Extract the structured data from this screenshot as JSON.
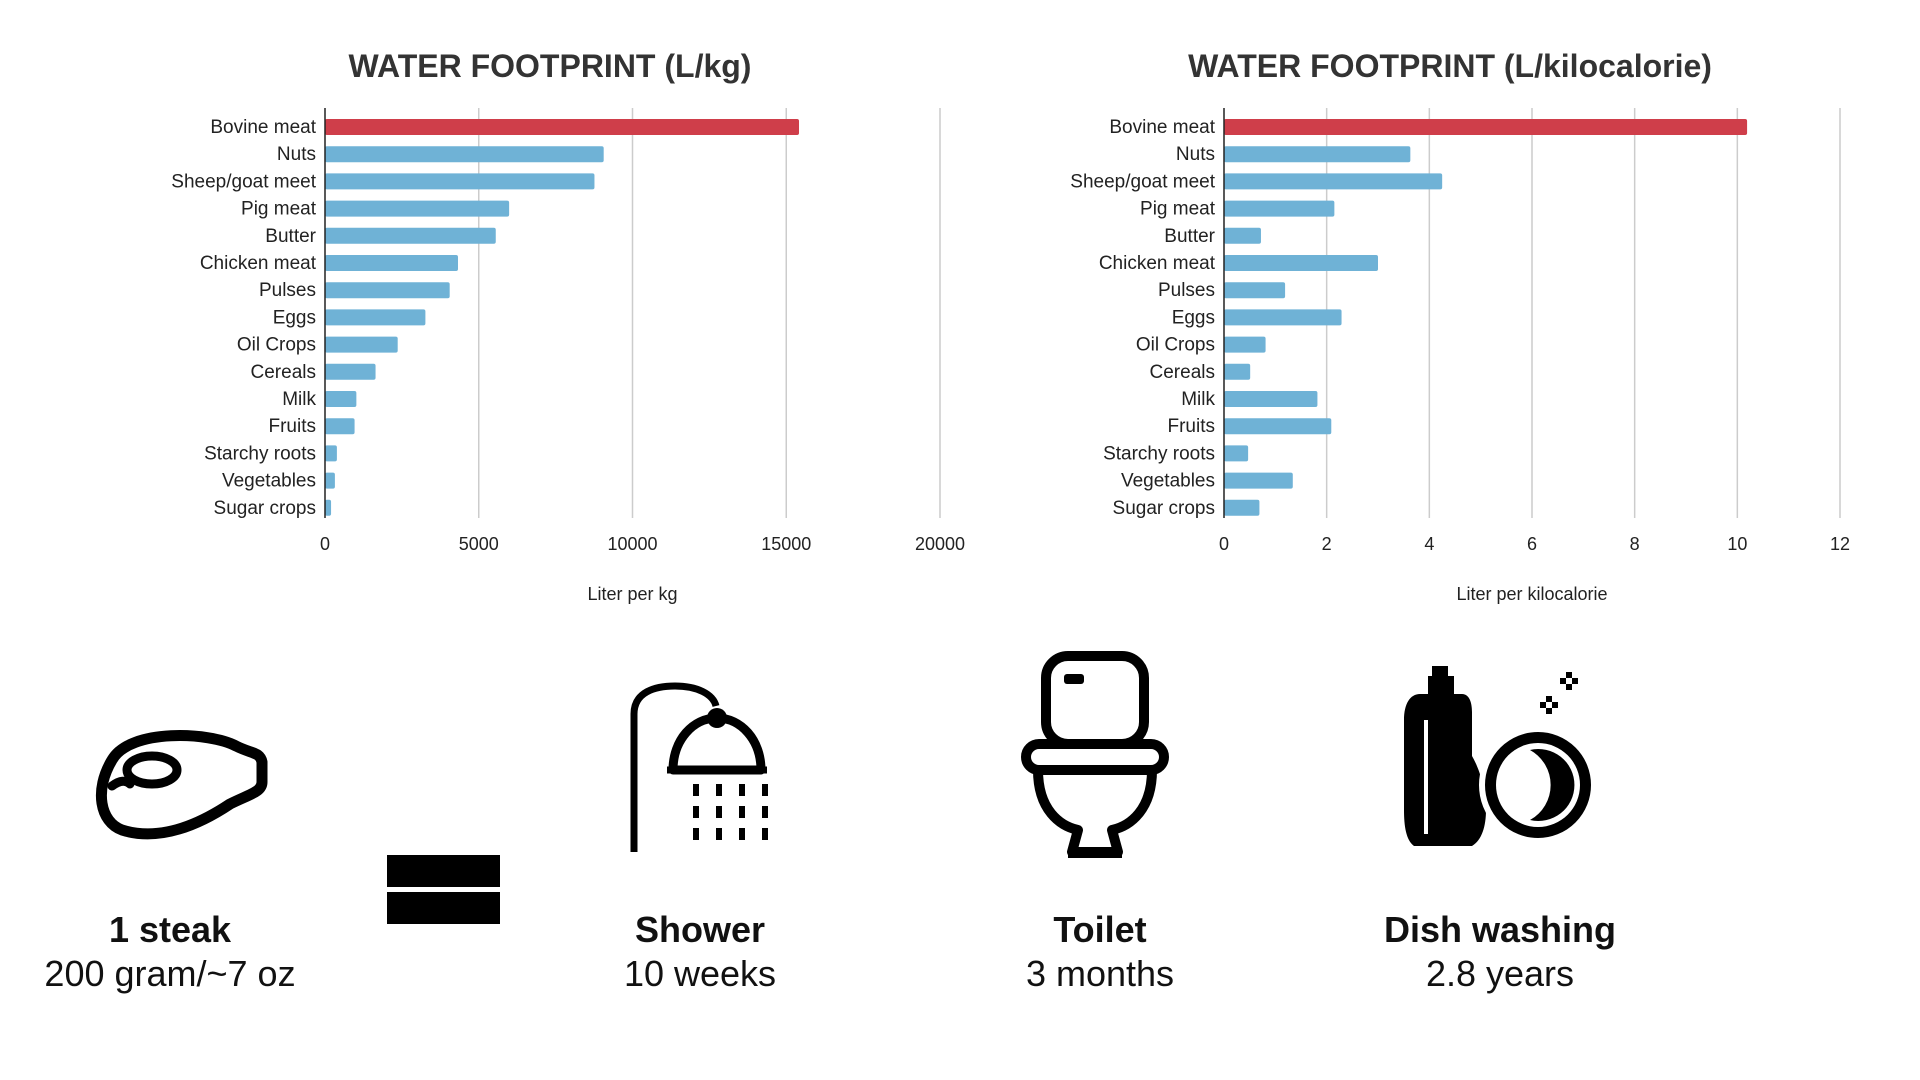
{
  "chart_data": [
    {
      "type": "bar",
      "orientation": "horizontal",
      "title": "WATER FOOTPRINT (L/kg)",
      "xlabel": "Liter per kg",
      "ylabel": "",
      "xlim": [
        0,
        20000
      ],
      "xticks": [
        0,
        5000,
        10000,
        15000,
        20000
      ],
      "tick_labels": [
        "0",
        "5000",
        "10000",
        "15000",
        "20000"
      ],
      "grid": true,
      "categories": [
        "Bovine meat",
        "Nuts",
        "Sheep/goat meet",
        "Pig meat",
        "Butter",
        "Chicken meat",
        "Pulses",
        "Eggs",
        "Oil Crops",
        "Cereals",
        "Milk",
        "Fruits",
        "Starchy roots",
        "Vegetables",
        "Sugar crops"
      ],
      "values": [
        15415,
        9063,
        8763,
        5988,
        5553,
        4325,
        4055,
        3265,
        2364,
        1644,
        1020,
        962,
        387,
        322,
        197
      ],
      "highlight_color": "#cf3e4a",
      "bar_color": "#6fb2d6"
    },
    {
      "type": "bar",
      "orientation": "horizontal",
      "title": "WATER FOOTPRINT (L/kilocalorie)",
      "xlabel": "Liter per kilocalorie",
      "ylabel": "",
      "xlim": [
        0,
        12
      ],
      "xticks": [
        0,
        2,
        4,
        6,
        8,
        10,
        12
      ],
      "tick_labels": [
        "0",
        "2",
        "4",
        "6",
        "8",
        "10",
        "12"
      ],
      "grid": true,
      "categories": [
        "Bovine meat",
        "Nuts",
        "Sheep/goat meet",
        "Pig meat",
        "Butter",
        "Chicken meat",
        "Pulses",
        "Eggs",
        "Oil Crops",
        "Cereals",
        "Milk",
        "Fruits",
        "Starchy roots",
        "Vegetables",
        "Sugar crops"
      ],
      "values": [
        10.19,
        3.63,
        4.25,
        2.15,
        0.72,
        3.0,
        1.19,
        2.29,
        0.81,
        0.51,
        1.82,
        2.09,
        0.47,
        1.34,
        0.69
      ],
      "highlight_color": "#cf3e4a",
      "bar_color": "#6fb2d6"
    }
  ],
  "comparison": {
    "steak": {
      "title": "1 steak",
      "subtitle": "200 gram/~7 oz",
      "icon": "steak-icon"
    },
    "equals": {
      "icon": "equals-icon"
    },
    "items": [
      {
        "title": "Shower",
        "subtitle": "10 weeks",
        "icon": "shower-icon"
      },
      {
        "title": "Toilet",
        "subtitle": "3 months",
        "icon": "toilet-icon"
      },
      {
        "title": "Dish washing",
        "subtitle": "2.8 years",
        "icon": "dish-washing-icon"
      }
    ]
  }
}
